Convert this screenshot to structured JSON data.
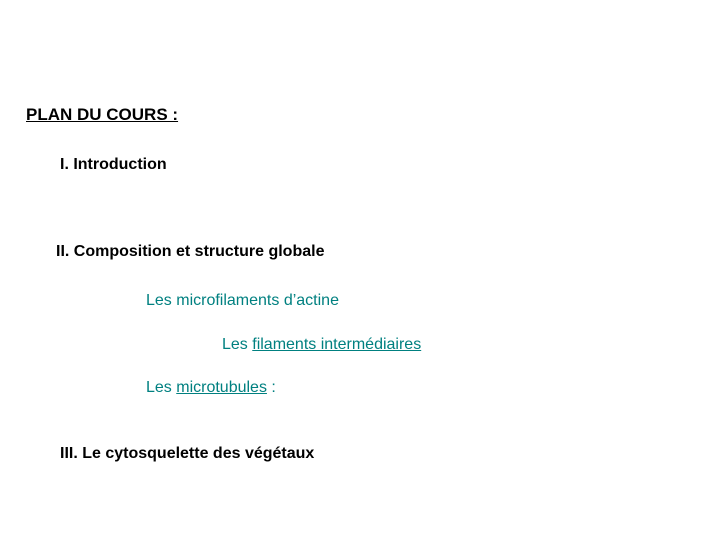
{
  "colors": {
    "background": "#ffffff",
    "text_black": "#000000",
    "text_teal": "#008080"
  },
  "typography": {
    "font_family": "Arial, Helvetica, sans-serif",
    "heading_fontsize": 17,
    "section_fontsize": 16,
    "subitem_fontsize": 16,
    "heading_weight": 700,
    "section_weight": 700,
    "subitem_weight": 400
  },
  "heading": "PLAN DU COURS :",
  "sections": {
    "s1": "I. Introduction",
    "s2": "II. Composition et structure globale",
    "s3": "III. Le cytosquelette des végétaux"
  },
  "subitems": {
    "a": "Les microfilaments d’actine",
    "b_prefix": "Les ",
    "b_underlined": "filaments intermédiaires",
    "c_prefix": "Les ",
    "c_underlined": "microtubules",
    "c_suffix": " :"
  }
}
